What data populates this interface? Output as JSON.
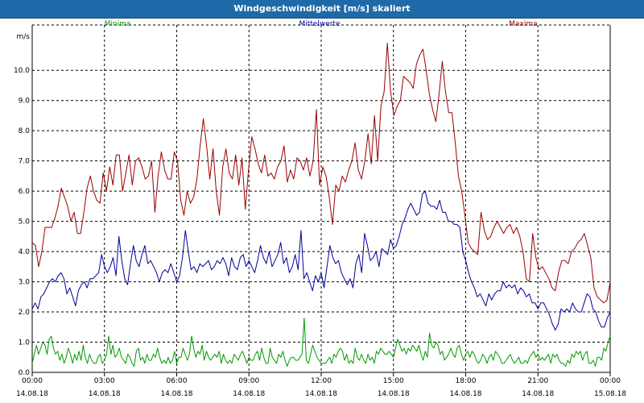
{
  "window": {
    "title": "Windgeschwindigkeit [m/s] skaliert"
  },
  "chart_data": {
    "type": "line",
    "title": "Windgeschwindigkeit [m/s] skaliert",
    "ylabel": "m/s",
    "xlabel": "",
    "ylim": [
      0,
      11.5
    ],
    "yticks": [
      "0.0",
      "1.0",
      "2.0",
      "3.0",
      "4.0",
      "5.0",
      "6.0",
      "7.0",
      "8.0",
      "9.0",
      "10.0"
    ],
    "x_ticks": [
      {
        "time": "00:00",
        "date": "14.08.18"
      },
      {
        "time": "03:00",
        "date": "14.08.18"
      },
      {
        "time": "06:00",
        "date": "14.08.18"
      },
      {
        "time": "09:00",
        "date": "14.08.18"
      },
      {
        "time": "12:00",
        "date": "14.08.18"
      },
      {
        "time": "15:00",
        "date": "14.08.18"
      },
      {
        "time": "18:00",
        "date": "14.08.18"
      },
      {
        "time": "21:00",
        "date": "14.08.18"
      },
      {
        "time": "00:00",
        "date": "15.08.18"
      }
    ],
    "grid": true,
    "legend": "top",
    "series": [
      {
        "name": "Minima",
        "color": "#009900",
        "values": [
          0.3,
          0.6,
          0.9,
          0.6,
          0.8,
          1.0,
          0.9,
          0.6,
          1.1,
          1.2,
          0.8,
          0.6,
          0.7,
          0.4,
          0.6,
          0.3,
          0.5,
          0.8,
          0.6,
          0.3,
          0.6,
          0.4,
          0.7,
          0.4,
          0.9,
          0.5,
          0.3,
          0.6,
          0.4,
          0.3,
          0.3,
          0.5,
          0.6,
          0.3,
          0.4,
          0.6,
          1.2,
          0.6,
          0.9,
          0.5,
          0.6,
          0.8,
          0.5,
          0.4,
          0.3,
          0.6,
          0.5,
          0.3,
          0.2,
          0.7,
          0.8,
          0.4,
          0.5,
          0.3,
          0.6,
          0.4,
          0.4,
          0.6,
          0.5,
          0.8,
          0.5,
          0.3,
          0.4,
          0.3,
          0.5,
          0.3,
          0.4,
          0.7,
          0.3,
          0.5,
          0.5,
          0.8,
          0.6,
          0.4,
          0.6,
          1.2,
          0.8,
          0.5,
          0.7,
          0.6,
          0.9,
          0.4,
          0.7,
          0.5,
          0.4,
          0.5,
          0.6,
          0.5,
          0.7,
          0.3,
          0.6,
          0.4,
          0.3,
          0.4,
          0.3,
          0.6,
          0.5,
          0.4,
          0.6,
          0.7,
          0.5,
          0.3,
          0.5,
          0.4,
          0.4,
          0.6,
          0.7,
          0.4,
          0.8,
          0.5,
          0.3,
          0.3,
          0.8,
          0.5,
          0.4,
          0.3,
          0.6,
          0.5,
          0.7,
          0.4,
          0.2,
          0.4,
          0.5,
          0.5,
          0.4,
          0.4,
          0.5,
          0.6,
          1.8,
          0.4,
          0.3,
          0.6,
          0.9,
          0.7,
          0.5,
          0.4,
          0.3,
          0.3,
          0.3,
          0.4,
          0.5,
          0.3,
          0.6,
          0.5,
          0.7,
          0.8,
          0.7,
          0.4,
          0.6,
          0.3,
          0.4,
          0.3,
          0.8,
          0.5,
          0.4,
          0.6,
          0.4,
          0.3,
          0.6,
          0.4,
          0.5,
          0.3,
          0.7,
          0.6,
          0.8,
          0.7,
          0.6,
          0.6,
          0.7,
          0.6,
          0.5,
          0.8,
          1.1,
          0.9,
          0.7,
          0.8,
          0.6,
          0.8,
          0.7,
          0.9,
          0.8,
          0.7,
          0.9,
          0.6,
          0.4,
          0.7,
          0.5,
          1.3,
          0.9,
          0.8,
          1.0,
          0.9,
          0.6,
          0.7,
          0.4,
          0.5,
          0.6,
          0.8,
          0.6,
          0.5,
          0.8,
          0.9,
          0.6,
          0.4,
          0.6,
          0.7,
          0.5,
          0.7,
          0.6,
          0.4,
          0.3,
          0.4,
          0.6,
          0.5,
          0.3,
          0.5,
          0.6,
          0.4,
          0.7,
          0.6,
          0.5,
          0.3,
          0.3,
          0.4,
          0.5,
          0.6,
          0.4,
          0.3,
          0.4,
          0.5,
          0.3,
          0.3,
          0.4,
          0.3,
          0.5,
          0.6,
          0.7,
          0.5,
          0.6,
          0.4,
          0.5,
          0.4,
          0.5,
          0.6,
          0.3,
          0.6,
          0.5,
          0.6,
          0.4,
          0.3,
          0.3,
          0.2,
          0.4,
          0.3,
          0.6,
          0.5,
          0.7,
          0.6,
          0.7,
          0.4,
          0.6,
          0.7,
          0.3,
          0.3,
          0.4,
          0.2,
          0.5,
          0.5,
          0.4,
          0.8,
          0.7,
          1.0,
          1.2
        ]
      },
      {
        "name": "Mittelwerte",
        "color": "#000099",
        "values": [
          2.1,
          2.3,
          2.1,
          2.5,
          2.6,
          2.8,
          3.0,
          3.1,
          3.0,
          3.2,
          3.3,
          3.1,
          2.6,
          2.8,
          2.5,
          2.2,
          2.7,
          2.9,
          3.0,
          2.8,
          3.1,
          3.1,
          3.2,
          3.3,
          3.9,
          3.5,
          3.3,
          3.5,
          3.8,
          3.2,
          4.5,
          3.7,
          3.1,
          2.9,
          3.6,
          4.2,
          3.7,
          3.5,
          3.9,
          4.2,
          3.6,
          3.7,
          3.5,
          3.3,
          3.0,
          3.3,
          3.4,
          3.3,
          3.6,
          3.3,
          3.0,
          3.2,
          3.8,
          4.7,
          4.0,
          3.4,
          3.5,
          3.3,
          3.6,
          3.5,
          3.6,
          3.7,
          3.4,
          3.5,
          3.7,
          3.6,
          3.8,
          3.6,
          3.2,
          3.8,
          3.5,
          3.4,
          3.8,
          3.9,
          3.5,
          3.7,
          3.5,
          3.3,
          3.7,
          4.2,
          3.8,
          3.6,
          4.0,
          3.5,
          3.7,
          3.9,
          4.3,
          3.6,
          3.8,
          3.3,
          3.5,
          3.9,
          3.4,
          4.7,
          3.1,
          3.3,
          3.0,
          2.7,
          3.2,
          3.0,
          3.3,
          2.8,
          3.5,
          4.2,
          3.8,
          3.6,
          3.7,
          3.3,
          3.1,
          2.9,
          3.1,
          2.8,
          3.6,
          3.9,
          3.3,
          4.6,
          4.2,
          3.7,
          3.8,
          4.0,
          3.5,
          4.1,
          4.0,
          3.9,
          4.4,
          4.1,
          4.2,
          4.5,
          4.9,
          5.1,
          5.4,
          5.6,
          5.4,
          5.2,
          5.3,
          5.9,
          6.0,
          5.6,
          5.5,
          5.5,
          5.4,
          5.7,
          5.3,
          5.3,
          5.0,
          5.0,
          4.9,
          4.9,
          4.8,
          4.0,
          3.7,
          3.3,
          3.0,
          2.8,
          2.5,
          2.6,
          2.4,
          2.2,
          2.6,
          2.4,
          2.6,
          2.7,
          2.7,
          3.0,
          2.8,
          2.9,
          2.8,
          2.9,
          2.6,
          2.8,
          2.7,
          2.5,
          2.6,
          2.3,
          2.3,
          2.1,
          2.3,
          2.3,
          2.1,
          1.9,
          1.6,
          1.4,
          1.6,
          2.1,
          2.0,
          2.1,
          2.0,
          2.3,
          2.1,
          2.0,
          2.0,
          2.3,
          2.6,
          2.5,
          2.1,
          2.0,
          1.7,
          1.5,
          1.5,
          1.8,
          2.0
        ]
      },
      {
        "name": "Maxima",
        "color": "#990000",
        "values": [
          4.3,
          4.2,
          3.5,
          4.0,
          4.8,
          4.8,
          4.8,
          5.1,
          5.5,
          6.1,
          5.8,
          5.5,
          5.0,
          5.3,
          4.6,
          4.6,
          5.3,
          6.1,
          6.5,
          6.0,
          5.7,
          5.6,
          6.6,
          6.0,
          6.8,
          6.2,
          7.2,
          7.2,
          6.0,
          6.6,
          7.2,
          6.2,
          7.0,
          7.1,
          6.8,
          6.4,
          6.5,
          7.0,
          5.3,
          6.5,
          7.3,
          6.7,
          6.4,
          6.4,
          7.3,
          7.0,
          5.7,
          5.2,
          6.0,
          5.6,
          5.8,
          6.4,
          7.5,
          8.4,
          7.5,
          6.4,
          7.4,
          6.0,
          5.2,
          6.8,
          7.4,
          6.6,
          6.4,
          7.2,
          6.2,
          7.1,
          5.4,
          6.7,
          7.8,
          7.4,
          6.9,
          6.6,
          7.2,
          6.5,
          6.6,
          6.4,
          6.8,
          7.0,
          7.5,
          6.3,
          6.7,
          6.4,
          7.1,
          7.0,
          6.7,
          7.1,
          6.5,
          7.0,
          8.7,
          6.2,
          6.8,
          6.5,
          5.8,
          4.9,
          6.2,
          6.0,
          6.5,
          6.3,
          6.7,
          7.0,
          7.6,
          6.7,
          6.4,
          7.0,
          7.9,
          6.9,
          8.5,
          7.0,
          8.8,
          9.3,
          10.9,
          9.3,
          8.5,
          8.8,
          9.0,
          9.8,
          9.7,
          9.6,
          9.4,
          10.2,
          10.5,
          10.7,
          10.0,
          9.2,
          8.7,
          8.3,
          9.2,
          10.3,
          9.3,
          8.6,
          8.6,
          7.6,
          6.5,
          6.0,
          5.2,
          4.3,
          4.1,
          4.0,
          3.9,
          5.3,
          4.7,
          4.4,
          4.5,
          4.8,
          5.0,
          4.8,
          4.6,
          4.8,
          4.9,
          4.6,
          4.8,
          4.5,
          4.0,
          3.1,
          3.0,
          4.6,
          3.8,
          3.4,
          3.5,
          3.3,
          3.1,
          2.8,
          2.7,
          3.3,
          3.7,
          3.7,
          3.6,
          4.0,
          4.1,
          4.3,
          4.4,
          4.6,
          4.2,
          3.8,
          2.8,
          2.5,
          2.4,
          2.3,
          2.4,
          3.0
        ]
      }
    ]
  }
}
